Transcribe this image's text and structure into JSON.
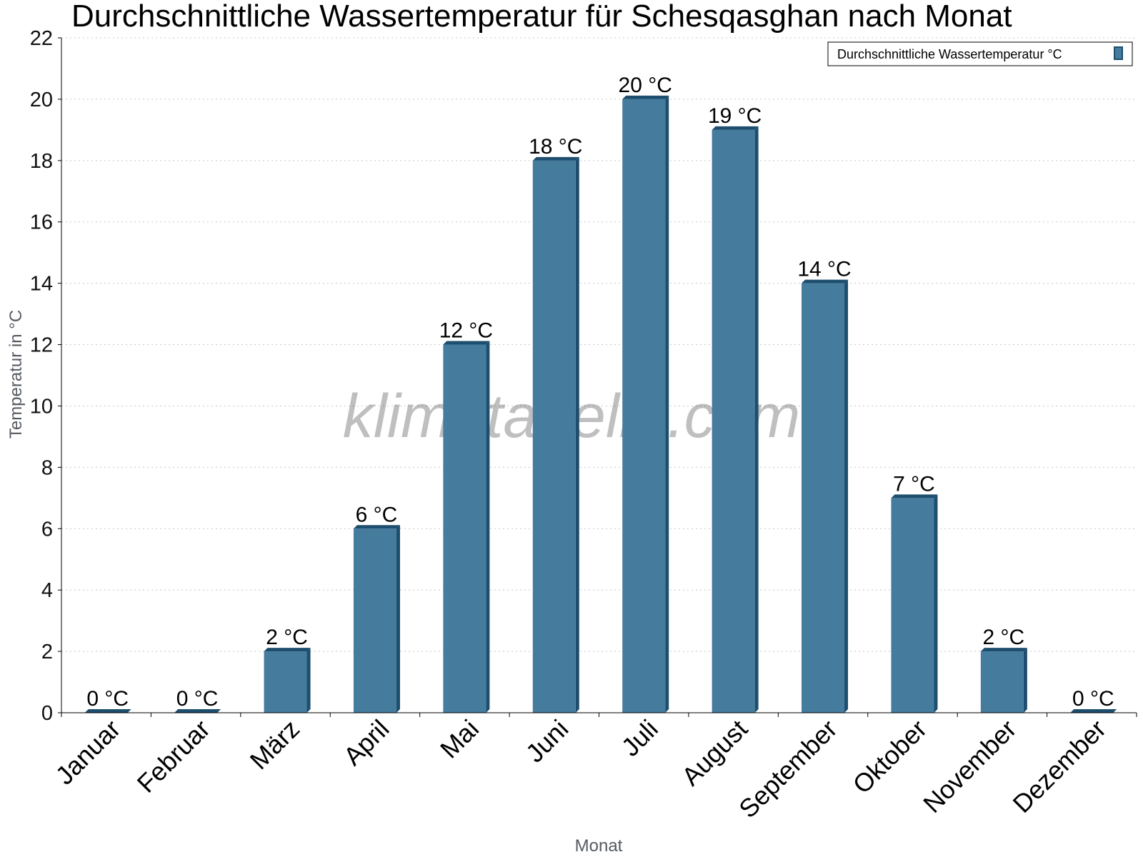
{
  "chart_data": {
    "type": "bar",
    "title": "Durchschnittliche Wassertemperatur für Schesqasghan nach Monat",
    "xlabel": "Monat",
    "ylabel": "Temperatur in °C",
    "categories": [
      "Januar",
      "Februar",
      "März",
      "April",
      "Mai",
      "Juni",
      "Juli",
      "August",
      "September",
      "Oktober",
      "November",
      "Dezember"
    ],
    "series": [
      {
        "name": "Durchschnittliche Wassertemperatur °C",
        "values": [
          0,
          0,
          2,
          6,
          12,
          18,
          20,
          19,
          14,
          7,
          2,
          0
        ],
        "labels": [
          "0 °C",
          "0 °C",
          "2 °C",
          "6 °C",
          "12 °C",
          "18 °C",
          "20 °C",
          "19 °C",
          "14 °C",
          "7 °C",
          "2 °C",
          "0 °C"
        ]
      }
    ],
    "yticks": [
      "0",
      "2",
      "4",
      "6",
      "8",
      "10",
      "12",
      "14",
      "16",
      "18",
      "20",
      "22"
    ],
    "ylim": [
      0,
      22
    ],
    "grid": true,
    "legend_position": "top-right",
    "colors": {
      "bar": "#457b9d",
      "bar_shade": "#1d4e6e"
    },
    "watermark": "klimatabelle.com"
  }
}
